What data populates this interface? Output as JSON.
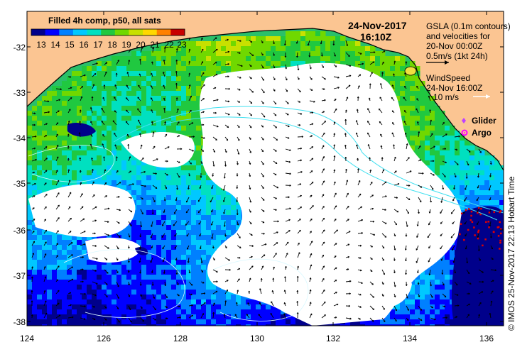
{
  "map": {
    "title": "Filled 4h comp, p50, all sats",
    "date": "24-Nov-2017",
    "time": "16:10Z",
    "gsla_lines": [
      "GSLA (0.1m contours)",
      "and velocities for",
      "20-Nov 00:00Z",
      "0.5m/s (1kt 24h)"
    ],
    "wind_lines": [
      "WindSpeed",
      "24-Nov 16:00Z",
      "10 m/s"
    ],
    "legend": {
      "glider": "Glider",
      "argo": "Argo"
    },
    "credit": "© IMOS 25-Nov-2017 22:13 Hobart Time",
    "colorbar": {
      "labels": [
        "13",
        "14",
        "15",
        "16",
        "17",
        "18",
        "19",
        "20",
        "21",
        "22",
        "23"
      ],
      "colors": [
        "#00008b",
        "#0000ff",
        "#0080ff",
        "#00c8ff",
        "#00e0c0",
        "#20c840",
        "#70d800",
        "#c8e000",
        "#ffd800",
        "#ff8000",
        "#c80000"
      ]
    },
    "lat_ticks": [
      "-32",
      "-33",
      "-34",
      "-35",
      "-36",
      "-37",
      "-38"
    ],
    "lon_ticks": [
      "124",
      "126",
      "128",
      "130",
      "132",
      "134",
      "136"
    ],
    "colors": {
      "land": "#fbc592",
      "cloud": "#ffffff",
      "glider": "#c040ff",
      "argo": "#ff00ff",
      "contour": "#40e0f0"
    }
  }
}
